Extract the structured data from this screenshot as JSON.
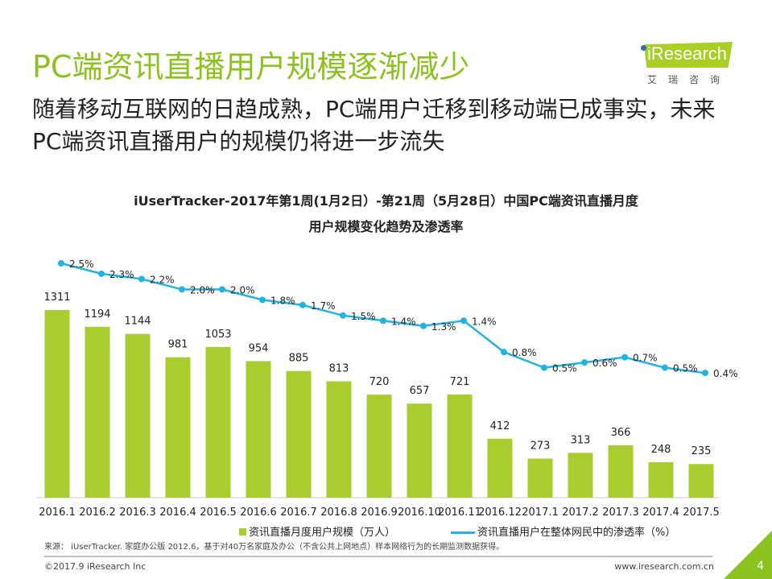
{
  "header": {
    "title": "PC端资讯直播用户规模逐渐减少",
    "subtitle": "随着移动互联网的日趋成熟，PC端用户迁移到移动端已成事实，未来PC端资讯直播用户的规模仍将进一步流失"
  },
  "logo": {
    "text": "iResearch",
    "cn": "艾瑞咨询"
  },
  "chart_data": {
    "type": "bar+line",
    "title_line1": "iUserTracker-2017年第1周(1月2日）-第21周（5月28日）中国PC端资讯直播月度",
    "title_line2": "用户规模变化趋势及渗透率",
    "categories": [
      "2016.1",
      "2016.2",
      "2016.3",
      "2016.4",
      "2016.5",
      "2016.6",
      "2016.7",
      "2016.8",
      "2016.9",
      "2016.10",
      "2016.11",
      "2016.12",
      "2017.1",
      "2017.2",
      "2017.3",
      "2017.4",
      "2017.5"
    ],
    "series": [
      {
        "name": "资讯直播月度用户规模（万人）",
        "type": "bar",
        "color": "#a9cd2f",
        "values": [
          1311,
          1194,
          1144,
          981,
          1053,
          954,
          885,
          813,
          720,
          657,
          721,
          412,
          273,
          313,
          366,
          248,
          235
        ]
      },
      {
        "name": "资讯直播用户在整体网民中的渗透率（%）",
        "type": "line",
        "color": "#1fb3e6",
        "values": [
          2.5,
          2.3,
          2.2,
          2.0,
          2.0,
          1.8,
          1.7,
          1.5,
          1.4,
          1.3,
          1.4,
          0.8,
          0.5,
          0.6,
          0.7,
          0.5,
          0.4
        ]
      }
    ],
    "legend": "bottom"
  },
  "footer": {
    "source": "来源： iUserTracker. 家庭办公版 2012.6，基于对40万名家庭及办公（不含公共上网地点）样本网络行为的长期监测数据获得。",
    "copyright": "©2017.9 iResearch Inc",
    "url": "www.iresearch.com.cn",
    "page": "4"
  }
}
